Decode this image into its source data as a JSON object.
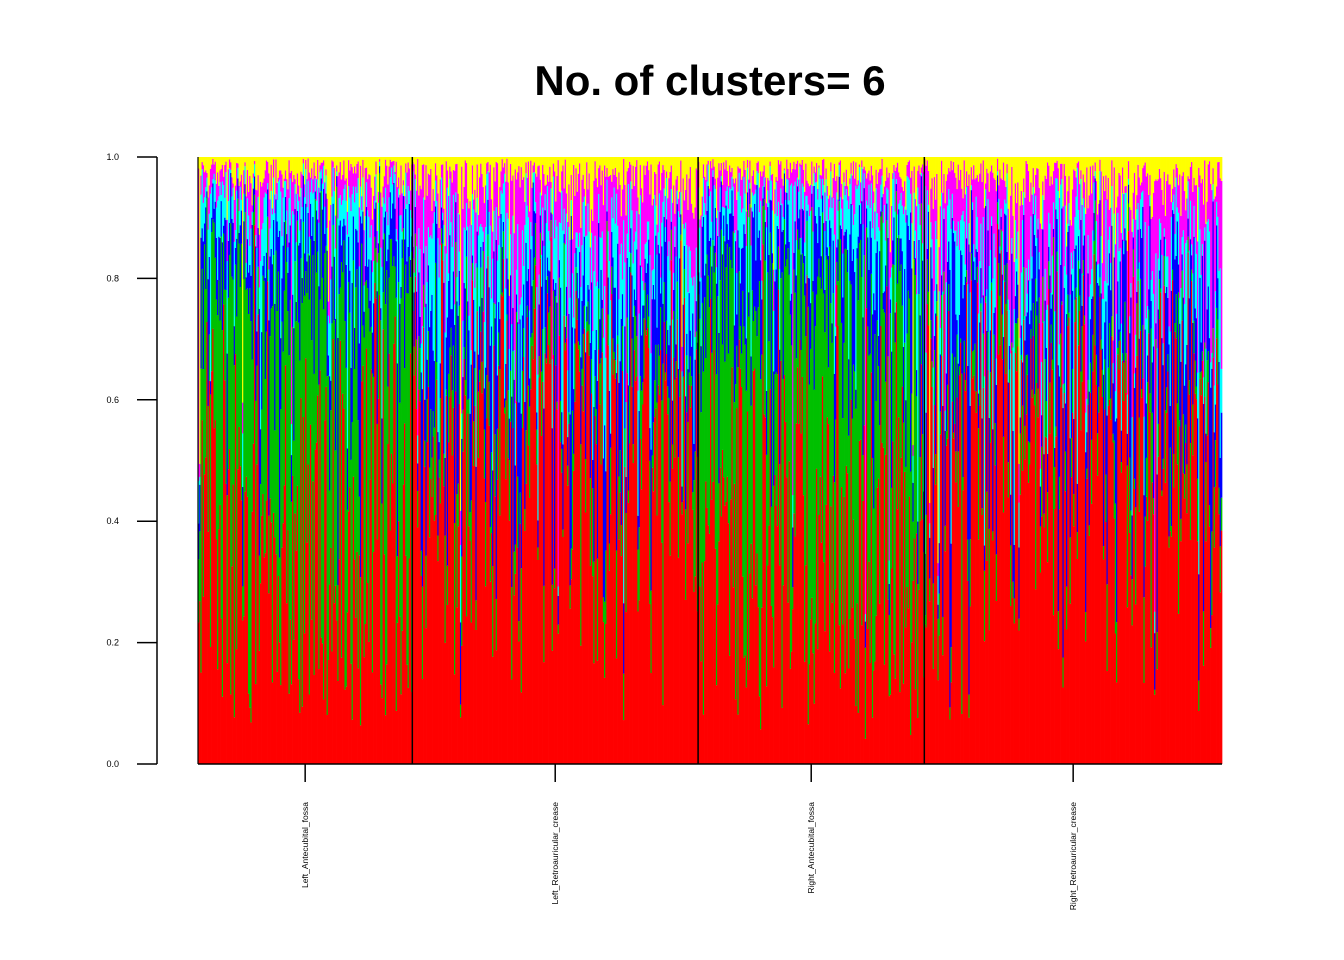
{
  "chart_data": {
    "type": "bar",
    "stacked": true,
    "title": "No. of clusters= 6",
    "xlabel": "",
    "ylabel": "",
    "ylim": [
      0,
      1
    ],
    "yticks": [
      "0.0",
      "0.2",
      "0.4",
      "0.6",
      "0.8",
      "1.0"
    ],
    "categories": [
      "Left_Antecubital_fossa",
      "Left_Retroauricular_crease",
      "Right_Antecubital_fossa",
      "Right_Retroauricular_crease"
    ],
    "group_sample_counts": [
      180,
      240,
      190,
      250
    ],
    "cluster_colors": [
      "#ff0000",
      "#00c000",
      "#0000ff",
      "#00ffff",
      "#ff00ff",
      "#ffff00"
    ],
    "series": [
      {
        "values": [
          0.38,
          0.55,
          0.39,
          0.57
        ]
      },
      {
        "values": [
          0.38,
          0.08,
          0.36,
          0.06
        ]
      },
      {
        "values": [
          0.1,
          0.13,
          0.11,
          0.14
        ]
      },
      {
        "values": [
          0.07,
          0.1,
          0.07,
          0.09
        ]
      },
      {
        "values": [
          0.04,
          0.1,
          0.04,
          0.1
        ]
      },
      {
        "values": [
          0.03,
          0.04,
          0.03,
          0.04
        ]
      }
    ],
    "grid": false,
    "legend": "none"
  }
}
